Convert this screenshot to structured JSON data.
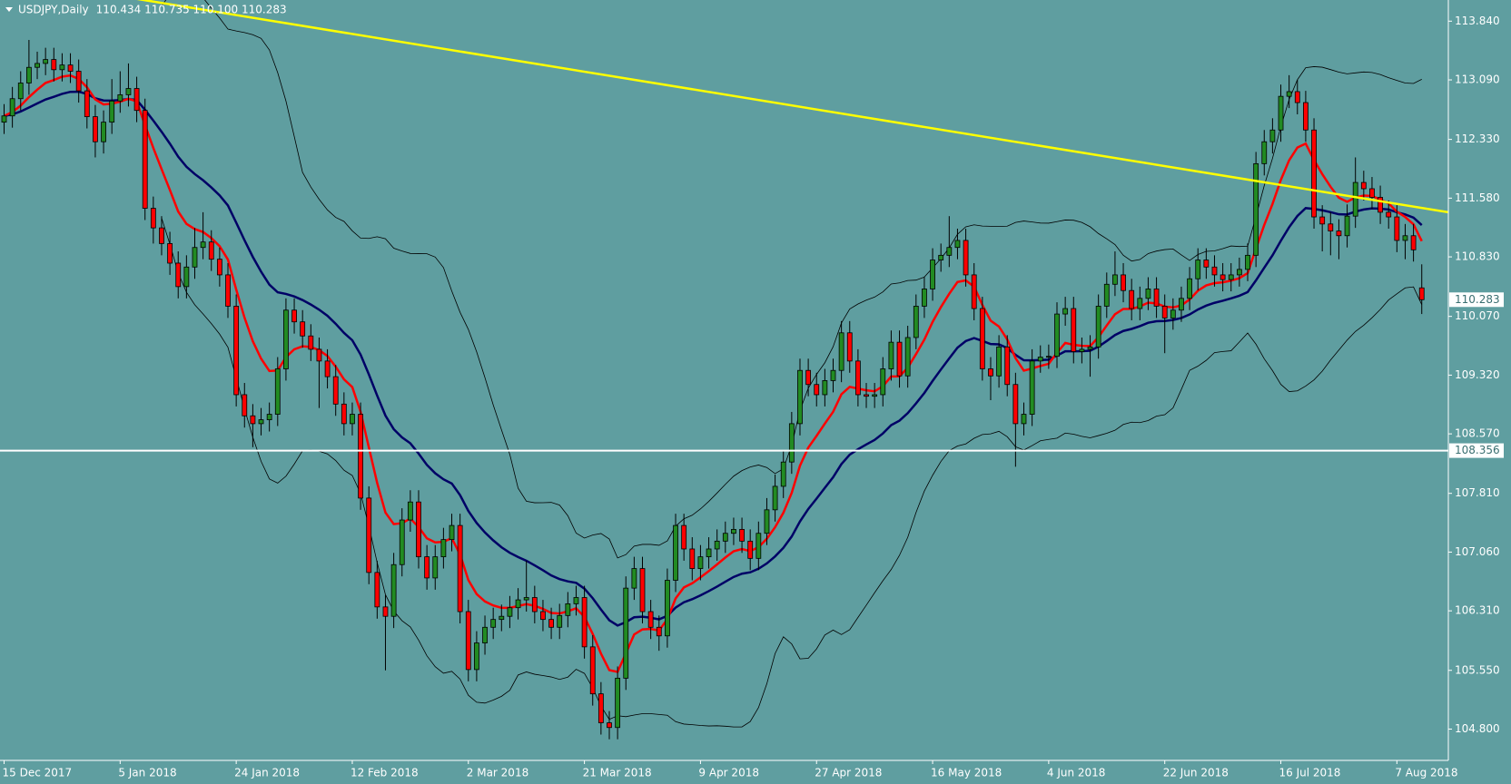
{
  "chart_data": {
    "type": "candlestick",
    "title": "USDJPY,Daily",
    "ohlc_text": "110.434 110.735 110.100 110.283",
    "categories": [
      "15 Dec 2017",
      null,
      null,
      null,
      null,
      null,
      null,
      null,
      null,
      null,
      null,
      null,
      null,
      null,
      "5 Jan 2018",
      null,
      null,
      null,
      null,
      null,
      null,
      null,
      null,
      null,
      null,
      null,
      null,
      null,
      "24 Jan 2018",
      null,
      null,
      null,
      null,
      null,
      null,
      null,
      null,
      null,
      null,
      null,
      null,
      null,
      "12 Feb 2018",
      null,
      null,
      null,
      null,
      null,
      null,
      null,
      null,
      null,
      null,
      null,
      null,
      null,
      "2 Mar 2018",
      null,
      null,
      null,
      null,
      null,
      null,
      null,
      null,
      null,
      null,
      null,
      null,
      null,
      "21 Mar 2018",
      null,
      null,
      null,
      null,
      null,
      null,
      null,
      null,
      null,
      null,
      null,
      null,
      null,
      "9 Apr 2018",
      null,
      null,
      null,
      null,
      null,
      null,
      null,
      null,
      null,
      null,
      null,
      null,
      null,
      "27 Apr 2018",
      null,
      null,
      null,
      null,
      null,
      null,
      null,
      null,
      null,
      null,
      null,
      null,
      null,
      "16 May 2018",
      null,
      null,
      null,
      null,
      null,
      null,
      null,
      null,
      null,
      null,
      null,
      null,
      null,
      "4 Jun 2018",
      null,
      null,
      null,
      null,
      null,
      null,
      null,
      null,
      null,
      null,
      null,
      null,
      null,
      "22 Jun 2018",
      null,
      null,
      null,
      null,
      null,
      null,
      null,
      null,
      null,
      null,
      null,
      null,
      null,
      "16 Jul 2018",
      null,
      null,
      null,
      null,
      null,
      null,
      null,
      null,
      null,
      null,
      null,
      null,
      null,
      "7 Aug 2018",
      null,
      null,
      null
    ],
    "open": [
      112.55,
      112.63,
      112.85,
      113.05,
      113.25,
      113.3,
      113.35,
      113.22,
      113.28,
      113.2,
      112.95,
      112.62,
      112.3,
      112.55,
      112.82,
      112.9,
      112.98,
      112.7,
      111.45,
      111.2,
      111.0,
      110.75,
      110.45,
      110.7,
      110.95,
      111.02,
      110.8,
      110.6,
      110.2,
      109.07,
      108.8,
      108.7,
      108.75,
      108.82,
      109.4,
      110.15,
      110.0,
      109.82,
      109.65,
      109.5,
      109.3,
      108.95,
      108.7,
      108.82,
      107.75,
      106.8,
      106.36,
      106.24,
      106.9,
      107.47,
      107.7,
      107.0,
      106.73,
      107.0,
      107.22,
      107.4,
      106.3,
      105.56,
      105.9,
      106.1,
      106.2,
      106.24,
      106.35,
      106.45,
      106.48,
      106.3,
      106.2,
      106.1,
      106.25,
      106.4,
      106.48,
      105.85,
      105.25,
      104.88,
      104.82,
      105.45,
      106.6,
      106.85,
      106.3,
      106.1,
      105.99,
      106.7,
      107.4,
      107.1,
      106.85,
      107.0,
      107.1,
      107.2,
      107.3,
      107.35,
      107.2,
      106.98,
      107.3,
      107.6,
      107.9,
      108.21,
      108.7,
      109.38,
      109.2,
      109.07,
      109.25,
      109.38,
      109.86,
      109.5,
      109.07,
      109.05,
      109.07,
      109.4,
      109.74,
      109.31,
      109.8,
      110.2,
      110.42,
      110.79,
      110.85,
      110.95,
      111.04,
      110.6,
      110.17,
      109.4,
      109.31,
      109.68,
      109.2,
      108.7,
      108.82,
      109.5,
      109.55,
      109.56,
      110.1,
      110.17,
      109.62,
      109.65,
      109.68,
      110.2,
      110.48,
      110.6,
      110.4,
      110.17,
      110.3,
      110.42,
      110.2,
      110.05,
      110.15,
      110.3,
      110.55,
      110.79,
      110.7,
      110.6,
      110.54,
      110.6,
      110.67,
      110.85,
      112.02,
      112.3,
      112.45,
      112.88,
      112.94,
      112.8,
      112.45,
      111.34,
      111.25,
      111.16,
      111.1,
      111.35,
      111.78,
      111.7,
      111.59,
      111.4,
      111.34,
      111.04,
      111.1,
      110.434
    ],
    "high": [
      112.78,
      113.0,
      113.2,
      113.6,
      113.45,
      113.5,
      113.5,
      113.43,
      113.43,
      113.35,
      113.1,
      112.77,
      112.7,
      113.1,
      113.2,
      113.3,
      113.13,
      112.85,
      111.6,
      111.35,
      111.15,
      110.9,
      110.85,
      111.2,
      111.4,
      111.17,
      110.95,
      110.75,
      110.35,
      109.22,
      108.95,
      108.9,
      108.97,
      109.55,
      110.3,
      110.3,
      110.15,
      109.97,
      109.8,
      109.65,
      109.45,
      109.1,
      108.97,
      108.97,
      107.9,
      106.95,
      106.51,
      107.05,
      107.62,
      107.85,
      107.85,
      107.15,
      107.15,
      107.37,
      107.55,
      107.55,
      106.45,
      106.05,
      106.25,
      106.35,
      106.39,
      106.5,
      106.6,
      106.95,
      106.63,
      106.45,
      106.35,
      106.4,
      106.55,
      106.63,
      106.63,
      106.0,
      105.4,
      105.03,
      105.6,
      106.75,
      107.0,
      107.0,
      106.45,
      106.25,
      106.85,
      107.55,
      107.55,
      107.25,
      107.15,
      107.25,
      107.35,
      107.45,
      107.5,
      107.5,
      107.35,
      107.45,
      107.75,
      108.05,
      108.36,
      108.85,
      109.53,
      109.53,
      109.35,
      109.4,
      109.53,
      110.01,
      110.01,
      109.65,
      109.22,
      109.22,
      109.55,
      109.89,
      109.89,
      109.95,
      110.35,
      110.57,
      110.94,
      111.0,
      111.35,
      111.19,
      111.19,
      110.75,
      110.32,
      109.55,
      109.83,
      109.83,
      109.35,
      108.97,
      109.65,
      109.7,
      109.71,
      110.25,
      110.32,
      110.32,
      109.8,
      109.83,
      110.35,
      110.63,
      110.9,
      110.75,
      110.55,
      110.45,
      110.57,
      110.57,
      110.35,
      110.3,
      110.45,
      110.7,
      110.94,
      110.94,
      110.85,
      110.75,
      110.75,
      110.82,
      111.0,
      112.17,
      112.45,
      112.6,
      113.03,
      113.15,
      113.09,
      112.95,
      112.6,
      111.49,
      111.4,
      111.31,
      111.5,
      112.1,
      111.93,
      111.85,
      111.74,
      111.55,
      111.49,
      111.25,
      111.25,
      110.735
    ],
    "low": [
      112.4,
      112.48,
      112.7,
      112.9,
      113.1,
      113.15,
      113.07,
      113.07,
      113.05,
      112.8,
      112.47,
      112.1,
      112.15,
      112.4,
      112.67,
      112.75,
      112.55,
      111.3,
      111.0,
      110.85,
      110.6,
      110.3,
      110.3,
      110.55,
      110.8,
      110.65,
      110.45,
      110.05,
      108.92,
      108.65,
      108.4,
      108.55,
      108.6,
      108.67,
      109.25,
      109.85,
      109.67,
      109.5,
      108.9,
      109.15,
      108.8,
      108.55,
      108.55,
      107.6,
      106.65,
      106.21,
      105.55,
      106.09,
      106.75,
      107.32,
      106.85,
      106.58,
      106.58,
      106.85,
      107.07,
      106.15,
      105.41,
      105.41,
      105.75,
      105.95,
      106.05,
      106.09,
      106.2,
      106.3,
      106.15,
      106.05,
      105.95,
      105.95,
      106.1,
      106.25,
      105.7,
      105.1,
      104.73,
      104.67,
      104.67,
      105.3,
      106.45,
      106.15,
      105.95,
      105.8,
      105.84,
      106.55,
      106.95,
      106.7,
      106.7,
      106.85,
      106.95,
      107.05,
      107.15,
      107.05,
      106.83,
      106.83,
      107.15,
      107.45,
      107.75,
      108.06,
      108.55,
      109.05,
      108.92,
      108.92,
      109.1,
      109.23,
      109.35,
      108.92,
      108.9,
      108.9,
      108.92,
      109.25,
      109.16,
      109.16,
      109.65,
      110.05,
      110.27,
      110.64,
      110.7,
      110.8,
      110.45,
      110.02,
      109.25,
      109.0,
      109.16,
      109.05,
      108.15,
      108.55,
      108.67,
      109.35,
      109.4,
      109.41,
      109.95,
      109.47,
      109.47,
      109.3,
      109.53,
      110.05,
      110.33,
      110.25,
      110.02,
      110.02,
      110.15,
      110.05,
      109.6,
      109.9,
      110.0,
      110.15,
      110.4,
      110.55,
      110.45,
      110.39,
      110.39,
      110.45,
      110.52,
      110.7,
      111.87,
      112.15,
      112.3,
      112.73,
      112.65,
      112.3,
      111.19,
      110.9,
      110.85,
      110.8,
      110.95,
      111.2,
      111.55,
      111.44,
      111.25,
      111.19,
      110.89,
      110.8,
      110.77,
      110.1
    ],
    "close": [
      112.63,
      112.85,
      113.05,
      113.25,
      113.3,
      113.35,
      113.22,
      113.28,
      113.2,
      112.95,
      112.62,
      112.3,
      112.55,
      112.82,
      112.9,
      112.98,
      112.7,
      111.45,
      111.2,
      111.0,
      110.75,
      110.45,
      110.7,
      110.95,
      111.02,
      110.8,
      110.6,
      110.2,
      109.07,
      108.8,
      108.7,
      108.75,
      108.82,
      109.4,
      110.15,
      110.0,
      109.82,
      109.65,
      109.5,
      109.3,
      108.95,
      108.7,
      108.82,
      107.75,
      106.8,
      106.36,
      106.24,
      106.9,
      107.47,
      107.7,
      107.0,
      106.73,
      107.0,
      107.22,
      107.4,
      106.3,
      105.56,
      105.9,
      106.1,
      106.2,
      106.24,
      106.35,
      106.45,
      106.48,
      106.3,
      106.2,
      106.1,
      106.25,
      106.4,
      106.48,
      105.85,
      105.25,
      104.88,
      104.82,
      105.45,
      106.6,
      106.85,
      106.3,
      106.1,
      105.99,
      106.7,
      107.4,
      107.1,
      106.85,
      107.0,
      107.1,
      107.2,
      107.3,
      107.35,
      107.2,
      106.98,
      107.3,
      107.6,
      107.9,
      108.21,
      108.7,
      109.38,
      109.2,
      109.07,
      109.25,
      109.38,
      109.86,
      109.5,
      109.07,
      109.05,
      109.07,
      109.4,
      109.74,
      109.31,
      109.8,
      110.2,
      110.42,
      110.79,
      110.85,
      110.95,
      111.04,
      110.6,
      110.17,
      109.4,
      109.31,
      109.68,
      109.2,
      108.7,
      108.82,
      109.5,
      109.55,
      109.56,
      110.1,
      110.17,
      109.62,
      109.65,
      109.68,
      110.2,
      110.48,
      110.6,
      110.4,
      110.17,
      110.3,
      110.42,
      110.2,
      110.05,
      110.15,
      110.3,
      110.55,
      110.79,
      110.7,
      110.6,
      110.54,
      110.6,
      110.67,
      110.85,
      112.02,
      112.3,
      112.45,
      112.88,
      112.94,
      112.8,
      112.45,
      111.34,
      111.25,
      111.16,
      111.1,
      111.35,
      111.78,
      111.7,
      111.59,
      111.4,
      111.34,
      111.04,
      111.1,
      110.92,
      110.283
    ],
    "up_color": "#228b22",
    "down_color": "#ff0000",
    "background": "#5f9ea0",
    "ylim": [
      104.4,
      114.11
    ],
    "yticks": [
      {
        "value": 113.84,
        "label": "113.840"
      },
      {
        "value": 113.09,
        "label": "113.090"
      },
      {
        "value": 112.33,
        "label": "112.330"
      },
      {
        "value": 111.58,
        "label": "111.580"
      },
      {
        "value": 110.83,
        "label": "110.830"
      },
      {
        "value": 110.07,
        "label": "110.070"
      },
      {
        "value": 109.32,
        "label": "109.320"
      },
      {
        "value": 108.57,
        "label": "108.570"
      },
      {
        "value": 107.81,
        "label": "107.810"
      },
      {
        "value": 107.06,
        "label": "107.060"
      },
      {
        "value": 106.31,
        "label": "106.310"
      },
      {
        "value": 105.55,
        "label": "105.550"
      },
      {
        "value": 104.8,
        "label": "104.800"
      }
    ],
    "hline": {
      "value": 108.356,
      "color": "#ffffff"
    },
    "trendline": {
      "x": [
        0,
        174.2
      ],
      "y": [
        114.4,
        111.4
      ],
      "color": "#ffff00"
    },
    "indicators": [
      {
        "kind": "bollinger",
        "period": 20,
        "deviation": 2,
        "color": "#000000"
      },
      {
        "kind": "ema",
        "period": 21,
        "color": "#000066"
      },
      {
        "kind": "ema",
        "period": 8,
        "color": "#ff0000"
      }
    ]
  }
}
